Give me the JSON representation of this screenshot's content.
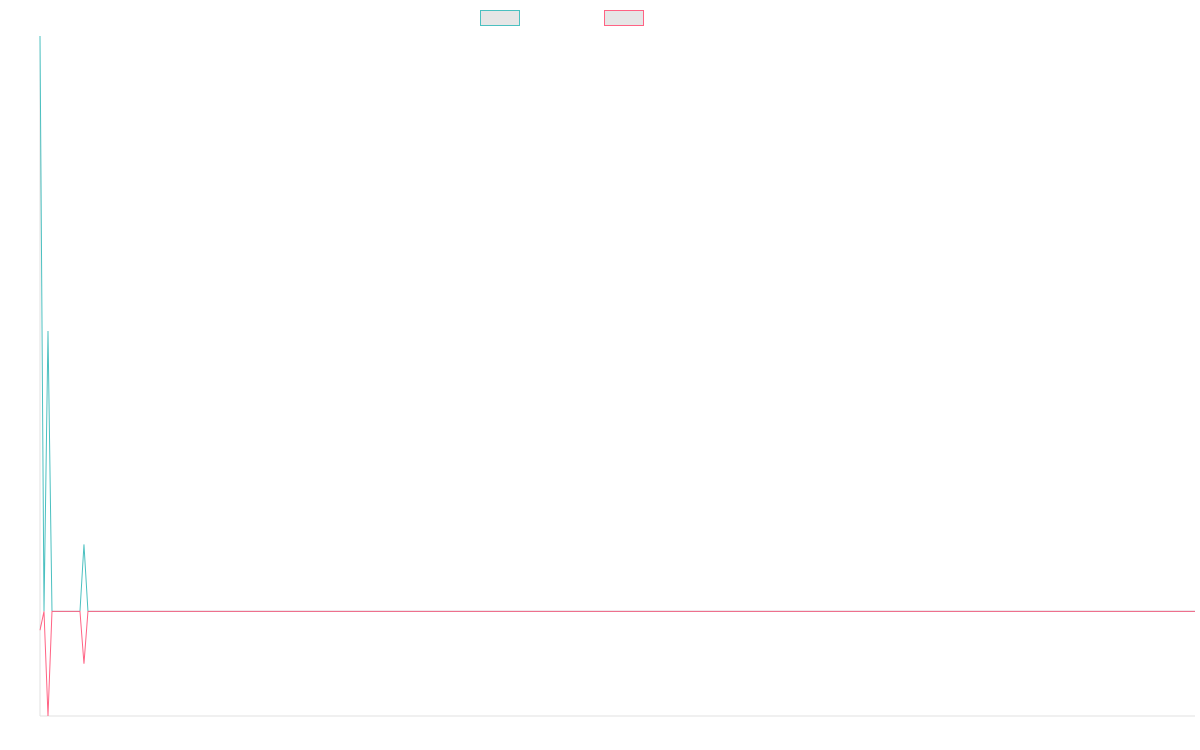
{
  "chart_data": {
    "type": "line",
    "x": [
      0,
      1,
      2,
      3,
      10,
      11,
      12,
      289
    ],
    "series": [
      {
        "color": "#4bc0c0",
        "values": [
          5.5,
          0,
          2.68,
          0,
          0,
          0.64,
          0,
          0
        ]
      },
      {
        "color": "#ff6384",
        "values": [
          -0.18,
          0,
          -1,
          0,
          0,
          -0.5,
          0,
          0
        ]
      }
    ],
    "xlim": [
      0,
      289
    ],
    "ylim": [
      -1,
      5.5
    ],
    "legend": "top"
  }
}
